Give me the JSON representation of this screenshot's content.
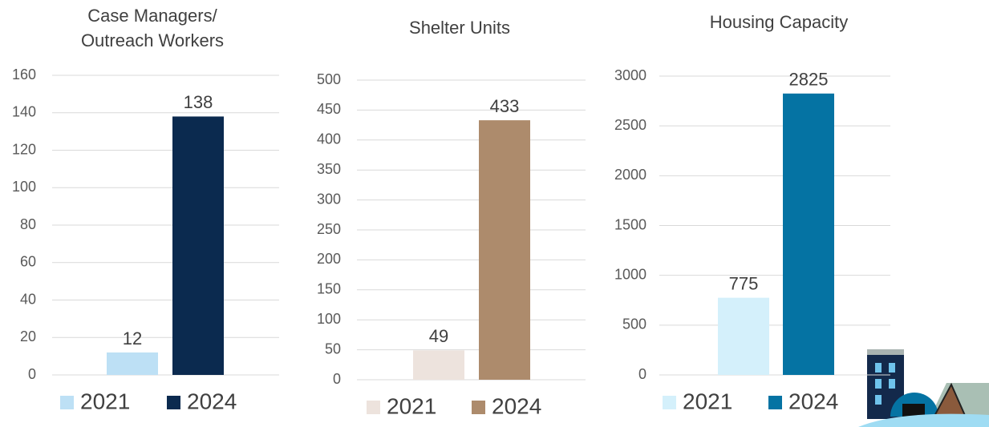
{
  "chart_data": [
    {
      "type": "bar",
      "title": "Case Managers/ Outreach Workers",
      "categories": [
        null
      ],
      "series": [
        {
          "name": "2021",
          "color": "#bde0f5",
          "values": [
            12
          ]
        },
        {
          "name": "2024",
          "color": "#0b2a4f",
          "values": [
            138
          ]
        }
      ],
      "ylim": [
        0,
        160
      ],
      "yticks": [
        0,
        20,
        40,
        60,
        80,
        100,
        120,
        140,
        160
      ],
      "grid": true,
      "legend": "bottom"
    },
    {
      "type": "bar",
      "title": "Shelter Units",
      "categories": [
        null
      ],
      "series": [
        {
          "name": "2021",
          "color": "#ede3dd",
          "values": [
            49
          ]
        },
        {
          "name": "2024",
          "color": "#ad8b6c",
          "values": [
            433
          ]
        }
      ],
      "ylim": [
        0,
        500
      ],
      "yticks": [
        0,
        50,
        100,
        150,
        200,
        250,
        300,
        350,
        400,
        450,
        500
      ],
      "grid": true,
      "legend": "bottom"
    },
    {
      "type": "bar",
      "title": "Housing Capacity",
      "categories": [
        null
      ],
      "series": [
        {
          "name": "2021",
          "color": "#d4f0fb",
          "values": [
            775
          ]
        },
        {
          "name": "2024",
          "color": "#0573a3",
          "values": [
            2825
          ]
        }
      ],
      "ylim": [
        0,
        3000
      ],
      "yticks": [
        0,
        500,
        1000,
        1500,
        2000,
        2500,
        3000
      ],
      "grid": true,
      "legend": "bottom"
    }
  ]
}
